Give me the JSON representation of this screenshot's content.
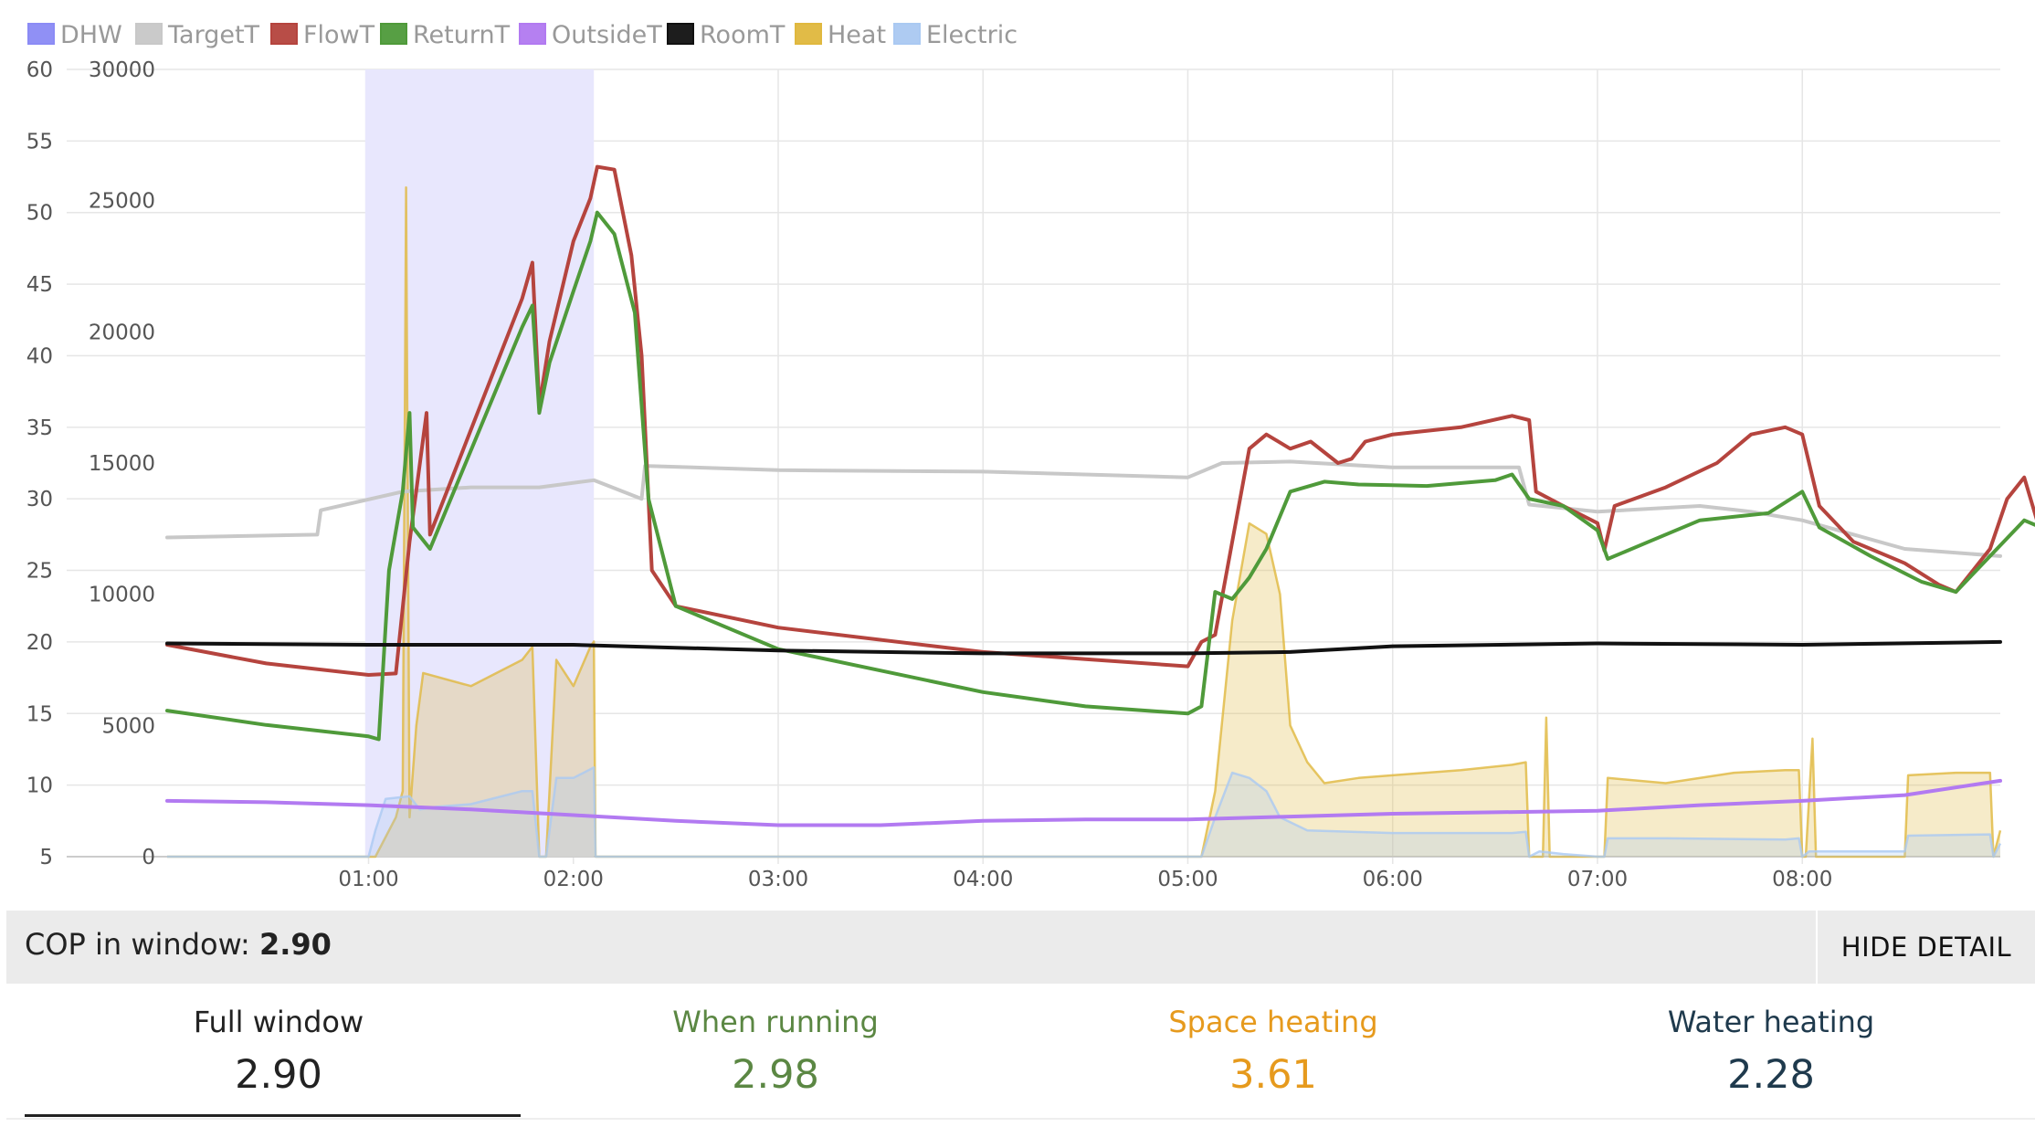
{
  "legend": [
    {
      "name": "DHW",
      "color": "#8b8bf5"
    },
    {
      "name": "TargetT",
      "color": "#c8c8c8"
    },
    {
      "name": "FlowT",
      "color": "#b5443e"
    },
    {
      "name": "ReturnT",
      "color": "#4f9a3a"
    },
    {
      "name": "OutsideT",
      "color": "#b27af1"
    },
    {
      "name": "RoomT",
      "color": "#111111"
    },
    {
      "name": "Heat",
      "color": "#e0b83e"
    },
    {
      "name": "Electric",
      "color": "#aac9f2"
    }
  ],
  "chart_data": {
    "type": "line",
    "x_unit": "hh:mm",
    "xlim": [
      "00:01",
      "08:58"
    ],
    "x_ticks": [
      "01:00",
      "02:00",
      "03:00",
      "04:00",
      "05:00",
      "06:00",
      "07:00",
      "08:00"
    ],
    "y_left_ticks": [
      "60",
      "55",
      "50",
      "45",
      "40",
      "35",
      "30",
      "25",
      "20",
      "15",
      "10",
      "5"
    ],
    "y_left_range": [
      5,
      60
    ],
    "y_right_ticks": [
      "30000",
      "25000",
      "20000",
      "15000",
      "10000",
      "5000",
      "0"
    ],
    "y_right_range": [
      0,
      30000
    ],
    "grid": true,
    "legend_position": "top-left",
    "bands": [
      {
        "series": "DHW",
        "from": "00:59",
        "to": "02:06"
      }
    ],
    "series": [
      {
        "name": "TargetT",
        "axis": "left",
        "color": "#c8c8c8",
        "points": [
          [
            "00:01",
            27.3
          ],
          [
            "00:45",
            27.5
          ],
          [
            "00:46",
            29.2
          ],
          [
            "01:10",
            30.5
          ],
          [
            "01:30",
            30.8
          ],
          [
            "01:50",
            30.8
          ],
          [
            "02:06",
            31.3
          ],
          [
            "02:20",
            30.0
          ],
          [
            "02:21",
            32.3
          ],
          [
            "03:00",
            32.0
          ],
          [
            "04:00",
            31.9
          ],
          [
            "05:00",
            31.5
          ],
          [
            "05:10",
            32.5
          ],
          [
            "05:30",
            32.6
          ],
          [
            "06:00",
            32.2
          ],
          [
            "06:37",
            32.2
          ],
          [
            "06:40",
            29.6
          ],
          [
            "07:00",
            29.1
          ],
          [
            "07:30",
            29.5
          ],
          [
            "07:45",
            29.1
          ],
          [
            "08:00",
            28.5
          ],
          [
            "08:30",
            26.5
          ],
          [
            "08:58",
            26.0
          ]
        ]
      },
      {
        "name": "FlowT",
        "axis": "left",
        "color": "#b5443e",
        "points": [
          [
            "00:01",
            19.8
          ],
          [
            "00:30",
            18.5
          ],
          [
            "01:00",
            17.7
          ],
          [
            "01:08",
            17.8
          ],
          [
            "01:12",
            27.0
          ],
          [
            "01:17",
            36.0
          ],
          [
            "01:18",
            27.5
          ],
          [
            "01:45",
            44.0
          ],
          [
            "01:48",
            46.5
          ],
          [
            "01:50",
            36.5
          ],
          [
            "01:53",
            41.0
          ],
          [
            "02:00",
            48.0
          ],
          [
            "02:05",
            51.0
          ],
          [
            "02:07",
            53.2
          ],
          [
            "02:12",
            53.0
          ],
          [
            "02:17",
            47.0
          ],
          [
            "02:20",
            40.0
          ],
          [
            "02:23",
            25.0
          ],
          [
            "02:30",
            22.5
          ],
          [
            "03:00",
            21.0
          ],
          [
            "04:00",
            19.3
          ],
          [
            "04:30",
            18.8
          ],
          [
            "05:00",
            18.3
          ],
          [
            "05:04",
            20.0
          ],
          [
            "05:08",
            20.5
          ],
          [
            "05:13",
            27.0
          ],
          [
            "05:18",
            33.5
          ],
          [
            "05:23",
            34.5
          ],
          [
            "05:30",
            33.5
          ],
          [
            "05:36",
            34.0
          ],
          [
            "05:44",
            32.5
          ],
          [
            "05:48",
            32.8
          ],
          [
            "05:52",
            34.0
          ],
          [
            "06:00",
            34.5
          ],
          [
            "06:20",
            35.0
          ],
          [
            "06:35",
            35.8
          ],
          [
            "06:40",
            35.5
          ],
          [
            "06:42",
            30.5
          ],
          [
            "06:50",
            29.5
          ],
          [
            "07:00",
            28.3
          ],
          [
            "07:02",
            26.4
          ],
          [
            "07:05",
            29.5
          ],
          [
            "07:20",
            30.8
          ],
          [
            "07:35",
            32.5
          ],
          [
            "07:45",
            34.5
          ],
          [
            "07:55",
            35.0
          ],
          [
            "08:00",
            34.5
          ],
          [
            "08:05",
            29.5
          ],
          [
            "08:15",
            27.0
          ],
          [
            "08:30",
            25.5
          ],
          [
            "08:40",
            24.0
          ],
          [
            "08:45",
            23.5
          ],
          [
            "08:55",
            26.5
          ],
          [
            "09:00",
            30.0
          ],
          [
            "09:05",
            31.5
          ],
          [
            "09:10",
            27.5
          ]
        ]
      },
      {
        "name": "ReturnT",
        "axis": "left",
        "color": "#4f9a3a",
        "points": [
          [
            "00:01",
            15.2
          ],
          [
            "00:30",
            14.2
          ],
          [
            "01:00",
            13.4
          ],
          [
            "01:03",
            13.2
          ],
          [
            "01:06",
            25.0
          ],
          [
            "01:10",
            30.5
          ],
          [
            "01:12",
            36.0
          ],
          [
            "01:13",
            28.0
          ],
          [
            "01:18",
            26.5
          ],
          [
            "01:45",
            42.0
          ],
          [
            "01:48",
            43.5
          ],
          [
            "01:50",
            36.0
          ],
          [
            "01:53",
            39.5
          ],
          [
            "02:00",
            44.5
          ],
          [
            "02:05",
            48.0
          ],
          [
            "02:07",
            50.0
          ],
          [
            "02:12",
            48.5
          ],
          [
            "02:18",
            43.0
          ],
          [
            "02:22",
            30.0
          ],
          [
            "02:30",
            22.5
          ],
          [
            "03:00",
            19.5
          ],
          [
            "04:00",
            16.5
          ],
          [
            "04:30",
            15.5
          ],
          [
            "05:00",
            15.0
          ],
          [
            "05:04",
            15.5
          ],
          [
            "05:08",
            23.5
          ],
          [
            "05:13",
            23.0
          ],
          [
            "05:18",
            24.5
          ],
          [
            "05:23",
            26.5
          ],
          [
            "05:30",
            30.5
          ],
          [
            "05:40",
            31.2
          ],
          [
            "05:50",
            31.0
          ],
          [
            "06:10",
            30.9
          ],
          [
            "06:30",
            31.3
          ],
          [
            "06:35",
            31.7
          ],
          [
            "06:40",
            30.0
          ],
          [
            "06:50",
            29.5
          ],
          [
            "07:00",
            27.8
          ],
          [
            "07:03",
            25.8
          ],
          [
            "07:15",
            27.0
          ],
          [
            "07:30",
            28.5
          ],
          [
            "07:50",
            29.0
          ],
          [
            "08:00",
            30.5
          ],
          [
            "08:05",
            28.0
          ],
          [
            "08:20",
            26.0
          ],
          [
            "08:35",
            24.2
          ],
          [
            "08:45",
            23.5
          ],
          [
            "08:55",
            26.0
          ],
          [
            "09:05",
            28.5
          ],
          [
            "09:10",
            28.0
          ]
        ]
      },
      {
        "name": "RoomT",
        "axis": "left",
        "color": "#111111",
        "points": [
          [
            "00:01",
            19.9
          ],
          [
            "01:00",
            19.8
          ],
          [
            "02:00",
            19.8
          ],
          [
            "02:30",
            19.6
          ],
          [
            "03:00",
            19.4
          ],
          [
            "04:00",
            19.2
          ],
          [
            "05:00",
            19.2
          ],
          [
            "05:30",
            19.3
          ],
          [
            "06:00",
            19.7
          ],
          [
            "07:00",
            19.9
          ],
          [
            "08:00",
            19.8
          ],
          [
            "08:58",
            20.0
          ]
        ]
      },
      {
        "name": "OutsideT",
        "axis": "left",
        "color": "#b27af1",
        "points": [
          [
            "00:01",
            8.9
          ],
          [
            "00:30",
            8.8
          ],
          [
            "01:00",
            8.6
          ],
          [
            "01:30",
            8.3
          ],
          [
            "02:00",
            7.9
          ],
          [
            "02:30",
            7.5
          ],
          [
            "03:00",
            7.2
          ],
          [
            "03:30",
            7.2
          ],
          [
            "04:00",
            7.5
          ],
          [
            "04:30",
            7.6
          ],
          [
            "05:00",
            7.6
          ],
          [
            "05:30",
            7.8
          ],
          [
            "06:00",
            8.0
          ],
          [
            "06:30",
            8.1
          ],
          [
            "07:00",
            8.2
          ],
          [
            "07:30",
            8.6
          ],
          [
            "08:00",
            8.9
          ],
          [
            "08:30",
            9.3
          ],
          [
            "08:58",
            10.3
          ]
        ]
      },
      {
        "name": "Heat",
        "axis": "right",
        "color": "#e0b83e",
        "filled": true,
        "points": [
          [
            "00:01",
            0
          ],
          [
            "01:00",
            0
          ],
          [
            "01:02",
            0
          ],
          [
            "01:08",
            1500
          ],
          [
            "01:10",
            2500
          ],
          [
            "01:11",
            25500
          ],
          [
            "01:12",
            1500
          ],
          [
            "01:14",
            5000
          ],
          [
            "01:16",
            7000
          ],
          [
            "01:30",
            6500
          ],
          [
            "01:45",
            7500
          ],
          [
            "01:48",
            8000
          ],
          [
            "01:50",
            0
          ],
          [
            "01:52",
            0
          ],
          [
            "01:55",
            7500
          ],
          [
            "02:00",
            6500
          ],
          [
            "02:05",
            8000
          ],
          [
            "02:06",
            8200
          ],
          [
            "02:06.5",
            0
          ],
          [
            "05:00",
            0
          ],
          [
            "05:04",
            0
          ],
          [
            "05:08",
            2500
          ],
          [
            "05:13",
            9000
          ],
          [
            "05:18",
            12700
          ],
          [
            "05:23",
            12300
          ],
          [
            "05:27",
            10000
          ],
          [
            "05:30",
            5000
          ],
          [
            "05:35",
            3600
          ],
          [
            "05:40",
            2800
          ],
          [
            "05:50",
            3000
          ],
          [
            "06:00",
            3100
          ],
          [
            "06:20",
            3300
          ],
          [
            "06:35",
            3500
          ],
          [
            "06:39",
            3600
          ],
          [
            "06:40",
            0
          ],
          [
            "06:44",
            0
          ],
          [
            "06:45",
            5300
          ],
          [
            "06:46",
            0
          ],
          [
            "07:00",
            0
          ],
          [
            "07:02",
            0
          ],
          [
            "07:03",
            3000
          ],
          [
            "07:20",
            2800
          ],
          [
            "07:40",
            3200
          ],
          [
            "07:55",
            3300
          ],
          [
            "07:59",
            3300
          ],
          [
            "08:00",
            0
          ],
          [
            "08:01",
            0
          ],
          [
            "08:03",
            4500
          ],
          [
            "08:04",
            0
          ],
          [
            "08:30",
            0
          ],
          [
            "08:31",
            3100
          ],
          [
            "08:45",
            3200
          ],
          [
            "08:55",
            3200
          ],
          [
            "08:56",
            0
          ],
          [
            "08:58",
            1000
          ]
        ]
      },
      {
        "name": "Electric",
        "axis": "right",
        "color": "#aac9f2",
        "filled": true,
        "points": [
          [
            "00:01",
            0
          ],
          [
            "01:00",
            0
          ],
          [
            "01:02",
            1000
          ],
          [
            "01:05",
            2200
          ],
          [
            "01:12",
            2300
          ],
          [
            "01:15",
            1800
          ],
          [
            "01:20",
            1900
          ],
          [
            "01:30",
            2000
          ],
          [
            "01:45",
            2500
          ],
          [
            "01:48",
            2500
          ],
          [
            "01:50",
            0
          ],
          [
            "01:52",
            0
          ],
          [
            "01:55",
            3000
          ],
          [
            "02:00",
            3000
          ],
          [
            "02:06",
            3400
          ],
          [
            "02:06.5",
            0
          ],
          [
            "05:00",
            0
          ],
          [
            "05:04",
            0
          ],
          [
            "05:08",
            1500
          ],
          [
            "05:13",
            3200
          ],
          [
            "05:18",
            3000
          ],
          [
            "05:23",
            2500
          ],
          [
            "05:27",
            1500
          ],
          [
            "05:35",
            1000
          ],
          [
            "06:00",
            900
          ],
          [
            "06:35",
            900
          ],
          [
            "06:39",
            950
          ],
          [
            "06:40",
            0
          ],
          [
            "06:43",
            200
          ],
          [
            "06:50",
            100
          ],
          [
            "07:00",
            0
          ],
          [
            "07:02",
            0
          ],
          [
            "07:03",
            700
          ],
          [
            "07:20",
            700
          ],
          [
            "07:55",
            650
          ],
          [
            "07:59",
            700
          ],
          [
            "08:00",
            0
          ],
          [
            "08:02",
            200
          ],
          [
            "08:30",
            200
          ],
          [
            "08:31",
            800
          ],
          [
            "08:55",
            850
          ],
          [
            "08:56",
            0
          ],
          [
            "08:58",
            500
          ]
        ]
      }
    ]
  },
  "cop": {
    "label": "COP in window: ",
    "value": "2.90",
    "hide_label": "HIDE DETAIL"
  },
  "stats": [
    {
      "label": "Full window",
      "value": "2.90",
      "color": "#222222"
    },
    {
      "label": "When running",
      "value": "2.98",
      "color": "#5b8743"
    },
    {
      "label": "Space heating",
      "value": "3.61",
      "color": "#e69a1d"
    },
    {
      "label": "Water heating",
      "value": "2.28",
      "color": "#1f3a4d"
    }
  ]
}
